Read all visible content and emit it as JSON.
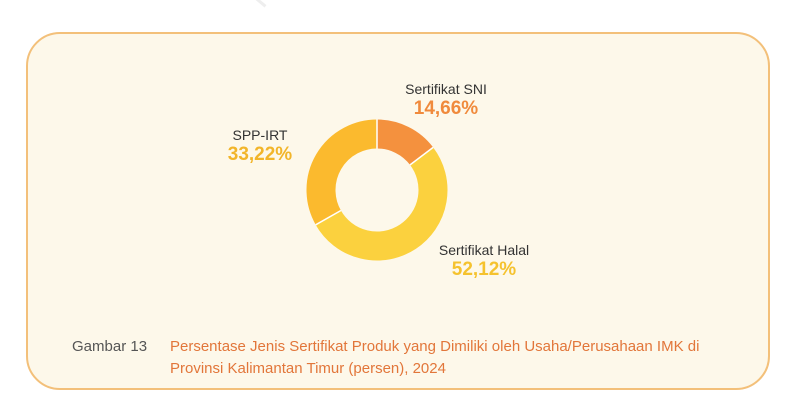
{
  "watermark": "http",
  "caption": {
    "number": "Gambar 13",
    "title": "Persentase Jenis Sertifikat Produk yang Dimiliki oleh Usaha/Perusahaan IMK di Provinsi Kalimantan Timur (persen), 2024"
  },
  "chart_data": {
    "type": "pie",
    "donut": true,
    "categories": [
      "Sertifikat SNI",
      "Sertifikat Halal",
      "SPP-IRT"
    ],
    "values": [
      14.66,
      52.12,
      33.22
    ],
    "value_labels": [
      "14,66%",
      "52,12%",
      "33,22%"
    ],
    "colors": [
      "#f4913e",
      "#fbd13e",
      "#fbba2e"
    ],
    "label_colors": [
      "#f08a3c",
      "#f5c22e",
      "#f2b52a"
    ],
    "title": "",
    "legend": "none"
  }
}
